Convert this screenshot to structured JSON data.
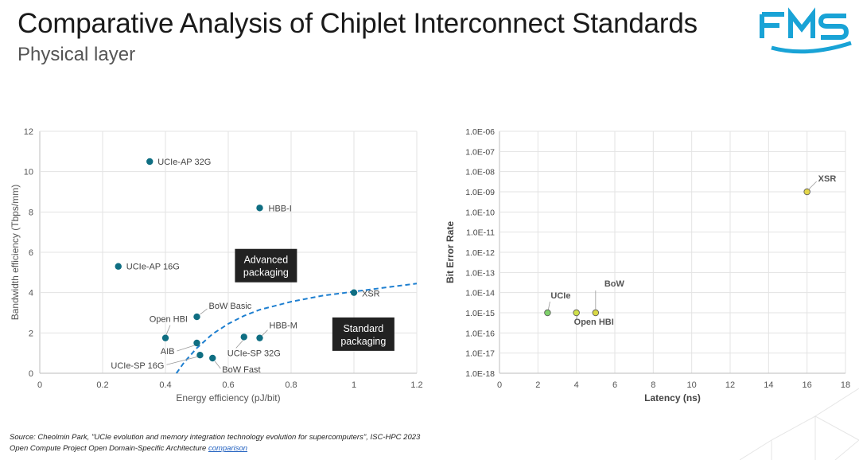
{
  "header": {
    "title": "Comparative Analysis of Chiplet Interconnect Standards",
    "subtitle": "Physical layer",
    "logo_text": "FMS"
  },
  "chart_data": [
    {
      "type": "scatter",
      "title": "",
      "xlabel": "Energy efficiency (pJ/bit)",
      "ylabel": "Bandwidth efficiency (Tbps/mm)",
      "xlim": [
        0,
        1.2
      ],
      "ylim": [
        0,
        12
      ],
      "x_ticks": [
        "0",
        "0.2",
        "0.4",
        "0.6",
        "0.8",
        "1",
        "1.2"
      ],
      "y_ticks": [
        "0",
        "2",
        "4",
        "6",
        "8",
        "10",
        "12"
      ],
      "grid": true,
      "point_color": "#0f6e82",
      "points": [
        {
          "label": "UCIe-AP 32G",
          "x": 0.35,
          "y": 10.5
        },
        {
          "label": "HBB-I",
          "x": 0.7,
          "y": 8.2
        },
        {
          "label": "UCIe-AP 16G",
          "x": 0.25,
          "y": 5.3
        },
        {
          "label": "XSR",
          "x": 1.0,
          "y": 4.0
        },
        {
          "label": "BoW Basic",
          "x": 0.5,
          "y": 2.8
        },
        {
          "label": "Open HBI",
          "x": 0.4,
          "y": 1.75
        },
        {
          "label": "AIB",
          "x": 0.5,
          "y": 1.5
        },
        {
          "label": "UCIe-SP 16G",
          "x": 0.51,
          "y": 0.9
        },
        {
          "label": "BoW Fast",
          "x": 0.55,
          "y": 0.75
        },
        {
          "label": "UCIe-SP 32G",
          "x": 0.65,
          "y": 1.8
        },
        {
          "label": "HBB-M",
          "x": 0.7,
          "y": 1.75
        }
      ],
      "trendline": {
        "style": "dashed",
        "color": "#1e7fd0",
        "x": [
          0.435,
          0.46,
          0.5,
          0.55,
          0.6,
          0.65,
          0.7,
          0.8,
          0.9,
          1.0,
          1.1,
          1.2
        ],
        "y": [
          0.0,
          0.55,
          1.25,
          1.95,
          2.45,
          2.85,
          3.15,
          3.55,
          3.85,
          4.05,
          4.25,
          4.45
        ]
      },
      "annotations": [
        {
          "text_lines": [
            "Advanced",
            "packaging"
          ],
          "x": 0.72,
          "y": 5.3
        },
        {
          "text_lines": [
            "Standard",
            "packaging"
          ],
          "x": 1.03,
          "y": 1.9
        }
      ]
    },
    {
      "type": "scatter",
      "title": "",
      "xlabel": "Latency (ns)",
      "ylabel": "Bit Error Rate",
      "xlim": [
        0,
        18
      ],
      "y_scale": "log",
      "ylim": [
        "1.0E-18",
        "1.0E-06"
      ],
      "x_ticks": [
        "0",
        "2",
        "4",
        "6",
        "8",
        "10",
        "12",
        "14",
        "16",
        "18"
      ],
      "y_ticks": [
        "1.0E-06",
        "1.0E-07",
        "1.0E-08",
        "1.0E-09",
        "1.0E-10",
        "1.0E-11",
        "1.0E-12",
        "1.0E-13",
        "1.0E-14",
        "1.0E-15",
        "1.0E-16",
        "1.0E-17",
        "1.0E-18"
      ],
      "grid": true,
      "points": [
        {
          "label": "UCIe",
          "x": 2.5,
          "y": 1e-15,
          "color": "#7ed06a"
        },
        {
          "label": "Open HBI",
          "x": 4,
          "y": 1e-15,
          "color": "#cfe04a"
        },
        {
          "label": "BoW",
          "x": 5,
          "y": 1e-15,
          "color": "#d9d845"
        },
        {
          "label": "XSR",
          "x": 16,
          "y": 1e-09,
          "color": "#e3d64a"
        }
      ]
    }
  ],
  "footer": {
    "line1": "Source: Cheolmin Park, \"UCIe evolution and memory integration technology evolution for supercomputers\", ISC-HPC 2023",
    "line2_prefix": "Open Compute Project Open Domain-Specific Architecture ",
    "link": "comparison"
  }
}
